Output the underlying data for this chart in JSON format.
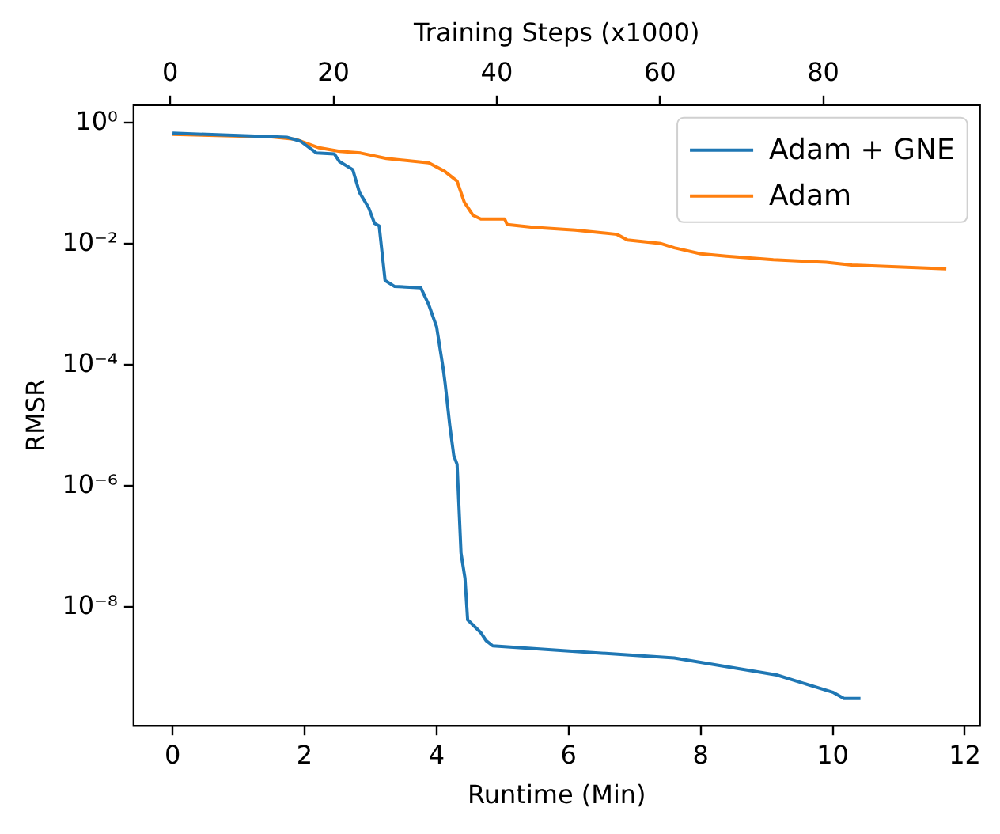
{
  "chart_data": {
    "type": "line",
    "xlabel": "Runtime (Min)",
    "ylabel": "RMSR",
    "x2label": "Training Steps (x1000)",
    "xlim": [
      -0.59,
      12.23
    ],
    "xticks": [
      0,
      2,
      4,
      6,
      8,
      10,
      12
    ],
    "x2lim": [
      -4.5,
      99.2
    ],
    "x2ticks": [
      0,
      20,
      40,
      60,
      80
    ],
    "ylim": [
      1.1e-10,
      1.98
    ],
    "log": "y",
    "yticks": [
      {
        "value": 1,
        "label": "10⁰"
      },
      {
        "value": 0.01,
        "label": "10⁻²"
      },
      {
        "value": 0.0001,
        "label": "10⁻⁴"
      },
      {
        "value": 1e-06,
        "label": "10⁻⁶"
      },
      {
        "value": 1e-08,
        "label": "10⁻⁸"
      }
    ],
    "grid": false,
    "legend": "top right",
    "marker": "none",
    "line_style": "solid",
    "series": [
      {
        "name": "Adam + GNE",
        "color": "#1f77b4",
        "x": [
          0,
          1.74,
          1.94,
          2.18,
          2.45,
          2.53,
          2.73,
          2.83,
          2.97,
          3.06,
          3.13,
          3.22,
          3.36,
          3.76,
          3.88,
          4.0,
          4.1,
          4.13,
          4.2,
          4.26,
          4.31,
          4.37,
          4.43,
          4.47,
          4.67,
          4.75,
          4.85,
          7.6,
          9.15,
          10.01,
          10.17,
          10.42
        ],
        "values": [
          0.68,
          0.58,
          0.5,
          0.32,
          0.31,
          0.23,
          0.17,
          0.072,
          0.04,
          0.022,
          0.02,
          0.0025,
          0.002,
          0.0019,
          0.001,
          0.00043,
          8.7e-05,
          4.9e-05,
          1e-05,
          3.2e-06,
          2.3e-06,
          7.8e-08,
          3e-08,
          6.2e-09,
          3.8e-09,
          2.8e-09,
          2.3e-09,
          1.45e-09,
          7.6e-10,
          3.9e-10,
          3.1e-10,
          3.1e-10
        ]
      },
      {
        "name": "Adam",
        "color": "#ff7f0e",
        "x": [
          0,
          1.5,
          1.86,
          2.22,
          2.53,
          2.85,
          3.24,
          3.88,
          4.12,
          4.31,
          4.42,
          4.55,
          4.67,
          5.03,
          5.07,
          5.46,
          6.1,
          6.73,
          6.89,
          7.4,
          7.6,
          8.0,
          8.39,
          9.1,
          9.9,
          10.29,
          11.72
        ],
        "values": [
          0.65,
          0.59,
          0.54,
          0.39,
          0.34,
          0.32,
          0.26,
          0.22,
          0.16,
          0.11,
          0.049,
          0.03,
          0.026,
          0.026,
          0.021,
          0.019,
          0.017,
          0.0145,
          0.0117,
          0.0102,
          0.0087,
          0.0069,
          0.0063,
          0.0055,
          0.005,
          0.0045,
          0.0039
        ]
      }
    ]
  }
}
